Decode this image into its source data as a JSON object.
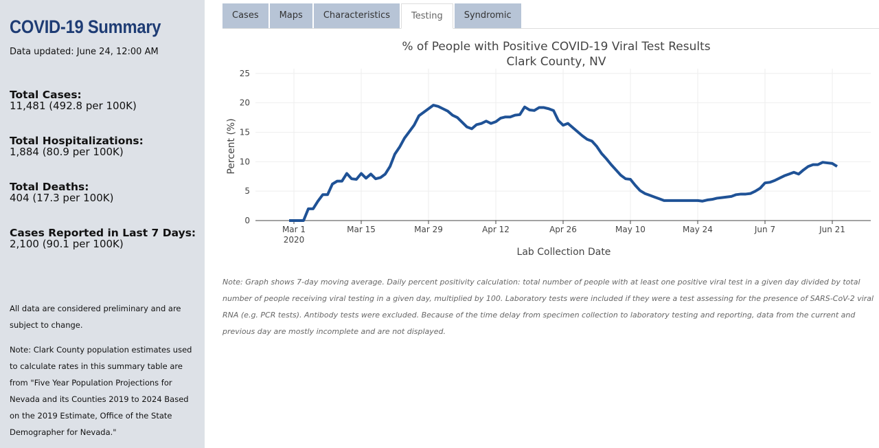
{
  "sidebar": {
    "title": "COVID-19 Summary",
    "updated": "Data updated: June 24, 12:00 AM",
    "stats": [
      {
        "label": "Total Cases:",
        "value": "11,481 (492.8 per 100K)"
      },
      {
        "label": "Total Hospitalizations:",
        "value": "1,884 (80.9 per 100K)"
      },
      {
        "label": "Total Deaths:",
        "value": "404 (17.3 per 100K)"
      },
      {
        "label": "Cases Reported in Last 7 Days:",
        "value": "2,100 (90.1 per 100K)"
      }
    ],
    "notes": [
      "All data are considered preliminary and are subject to change.",
      "Note: Clark County population estimates used to calculate rates in this summary table are from \"Five Year Population Projections for Nevada and its Counties 2019 to 2024 Based on the 2019 Estimate, Office of the State Demographer for Nevada.\""
    ]
  },
  "tabs": [
    "Cases",
    "Maps",
    "Characteristics",
    "Testing",
    "Syndromic"
  ],
  "active_tab": "Testing",
  "chart_data": {
    "type": "line",
    "title": "% of People with Positive COVID-19 Viral Test Results",
    "subtitle": "Clark County, NV",
    "x_label": "Lab Collection Date",
    "y_label": "Percent (%)",
    "color": "#1f5296",
    "grid": true,
    "xlim": [
      "2020-02-22",
      "2020-06-29"
    ],
    "ylim": [
      0,
      25.8
    ],
    "yticks": [
      0,
      5,
      10,
      15,
      20,
      25
    ],
    "xticks": [
      {
        "value": "2020-03-01",
        "label": "Mar 1\n2020"
      },
      {
        "value": "2020-03-15",
        "label": "Mar 15"
      },
      {
        "value": "2020-03-29",
        "label": "Mar 29"
      },
      {
        "value": "2020-04-12",
        "label": "Apr 12"
      },
      {
        "value": "2020-04-26",
        "label": "Apr 26"
      },
      {
        "value": "2020-05-10",
        "label": "May 10"
      },
      {
        "value": "2020-05-24",
        "label": "May 24"
      },
      {
        "value": "2020-06-07",
        "label": "Jun 7"
      },
      {
        "value": "2020-06-21",
        "label": "Jun 21"
      }
    ],
    "x": [
      "2020-02-29",
      "2020-03-01",
      "2020-03-02",
      "2020-03-03",
      "2020-03-04",
      "2020-03-05",
      "2020-03-06",
      "2020-03-07",
      "2020-03-08",
      "2020-03-09",
      "2020-03-10",
      "2020-03-11",
      "2020-03-12",
      "2020-03-13",
      "2020-03-14",
      "2020-03-15",
      "2020-03-16",
      "2020-03-17",
      "2020-03-18",
      "2020-03-19",
      "2020-03-20",
      "2020-03-21",
      "2020-03-22",
      "2020-03-23",
      "2020-03-24",
      "2020-03-25",
      "2020-03-26",
      "2020-03-27",
      "2020-03-28",
      "2020-03-29",
      "2020-03-30",
      "2020-03-31",
      "2020-04-01",
      "2020-04-02",
      "2020-04-03",
      "2020-04-04",
      "2020-04-05",
      "2020-04-06",
      "2020-04-07",
      "2020-04-08",
      "2020-04-09",
      "2020-04-10",
      "2020-04-11",
      "2020-04-12",
      "2020-04-13",
      "2020-04-14",
      "2020-04-15",
      "2020-04-16",
      "2020-04-17",
      "2020-04-18",
      "2020-04-19",
      "2020-04-20",
      "2020-04-21",
      "2020-04-22",
      "2020-04-23",
      "2020-04-24",
      "2020-04-25",
      "2020-04-26",
      "2020-04-27",
      "2020-04-28",
      "2020-04-29",
      "2020-04-30",
      "2020-05-01",
      "2020-05-02",
      "2020-05-03",
      "2020-05-04",
      "2020-05-05",
      "2020-05-06",
      "2020-05-07",
      "2020-05-08",
      "2020-05-09",
      "2020-05-10",
      "2020-05-11",
      "2020-05-12",
      "2020-05-13",
      "2020-05-14",
      "2020-05-15",
      "2020-05-16",
      "2020-05-17",
      "2020-05-18",
      "2020-05-19",
      "2020-05-20",
      "2020-05-21",
      "2020-05-22",
      "2020-05-23",
      "2020-05-24",
      "2020-05-25",
      "2020-05-26",
      "2020-05-27",
      "2020-05-28",
      "2020-05-29",
      "2020-05-30",
      "2020-05-31",
      "2020-06-01",
      "2020-06-02",
      "2020-06-03",
      "2020-06-04",
      "2020-06-05",
      "2020-06-06",
      "2020-06-07",
      "2020-06-08",
      "2020-06-09",
      "2020-06-10",
      "2020-06-11",
      "2020-06-12",
      "2020-06-13",
      "2020-06-14",
      "2020-06-15",
      "2020-06-16",
      "2020-06-17",
      "2020-06-18",
      "2020-06-19",
      "2020-06-20",
      "2020-06-21",
      "2020-06-22"
    ],
    "values": [
      0,
      0,
      0,
      0,
      2,
      2,
      3.3,
      4.4,
      4.4,
      6.2,
      6.7,
      6.7,
      8.0,
      7.1,
      7.0,
      8.0,
      7.2,
      7.9,
      7.1,
      7.3,
      7.9,
      9.2,
      11.3,
      12.5,
      14.0,
      15.1,
      16.2,
      17.8,
      18.4,
      19.0,
      19.6,
      19.4,
      19.0,
      18.6,
      17.9,
      17.5,
      16.7,
      15.9,
      15.6,
      16.3,
      16.5,
      16.9,
      16.5,
      16.8,
      17.4,
      17.6,
      17.6,
      17.9,
      18.0,
      19.3,
      18.8,
      18.7,
      19.2,
      19.2,
      19.0,
      18.7,
      17.0,
      16.2,
      16.5,
      15.8,
      15.1,
      14.4,
      13.8,
      13.5,
      12.6,
      11.4,
      10.5,
      9.5,
      8.6,
      7.7,
      7.1,
      7.0,
      6.0,
      5.1,
      4.6,
      4.3,
      4.0,
      3.7,
      3.4,
      3.4,
      3.4,
      3.4,
      3.4,
      3.4,
      3.4,
      3.4,
      3.3,
      3.5,
      3.6,
      3.8,
      3.9,
      4.0,
      4.1,
      4.4,
      4.5,
      4.5,
      4.6,
      5.0,
      5.5,
      6.4,
      6.5,
      6.8,
      7.2,
      7.6,
      7.9,
      8.2,
      7.9,
      8.6,
      9.2,
      9.5,
      9.5,
      9.9,
      9.8,
      9.7,
      9.2
    ],
    "note": "Note: Graph shows 7-day moving average. Daily percent positivity calculation: total number of people with at least one positive viral test in a given day divided by total number of people receiving viral testing in a given day, multiplied by 100. Laboratory tests were included if they were a test assessing for the presence of SARS-CoV-2 viral RNA (e.g. PCR tests). Antibody tests were excluded. Because of the time delay from specimen collection to laboratory testing and reporting, data from the current and previous day are mostly incomplete and are not displayed."
  }
}
